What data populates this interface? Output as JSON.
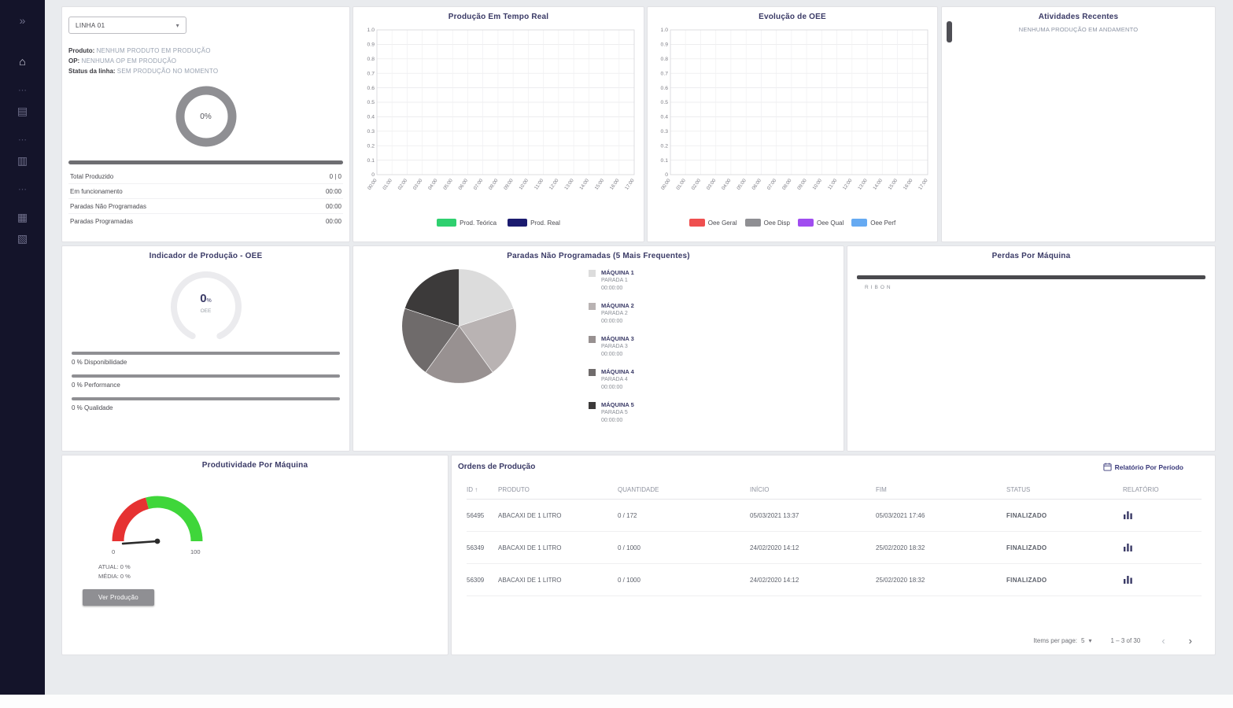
{
  "theme": {
    "accent": "#3a3a66",
    "sidebar_bg": "#14142a",
    "page_bg": "#e9ebee",
    "finalizado_color": "#26262b"
  },
  "sidebar": {
    "items": [
      {
        "name": "menu-expand",
        "glyph": "»"
      },
      {
        "name": "home",
        "glyph": "⌂"
      },
      {
        "name": "divider",
        "glyph": "⋯"
      },
      {
        "name": "producao",
        "glyph": "▤"
      },
      {
        "name": "divider",
        "glyph": "⋯"
      },
      {
        "name": "relatorios",
        "glyph": "▥"
      },
      {
        "name": "divider",
        "glyph": "⋯"
      },
      {
        "name": "maquinas",
        "glyph": "▦"
      },
      {
        "name": "cadastros",
        "glyph": "▧"
      }
    ]
  },
  "line_card": {
    "selector_value": "LINHA 01",
    "fields": [
      {
        "label": "Produto:",
        "value": "NENHUM PRODUTO EM PRODUÇÃO"
      },
      {
        "label": "OP:",
        "value": "NENHUMA OP EM PRODUÇÃO"
      },
      {
        "label": "Status da linha:",
        "value": "SEM PRODUÇÃO NO MOMENTO"
      }
    ],
    "donut_value": "0%",
    "stats": [
      {
        "label": "Total Produzido",
        "value": "0 | 0"
      },
      {
        "label": "Em funcionamento",
        "value": "00:00"
      },
      {
        "label": "Paradas Não Programadas",
        "value": "00:00"
      },
      {
        "label": "Paradas Programadas",
        "value": "00:00"
      }
    ]
  },
  "activities": {
    "title": "Atividades Recentes",
    "items": [
      "NENHUMA PRODUÇÃO EM ANDAMENTO"
    ]
  },
  "orders": {
    "title": "Ordens de Produção",
    "report_link": "Relatório Por Período",
    "columns": [
      "ID",
      "PRODUTO",
      "QUANTIDADE",
      "INÍCIO",
      "FIM",
      "STATUS",
      "RELATÓRIO"
    ],
    "rows": [
      {
        "id": "56495",
        "produto": "ABACAXI DE 1 LITRO",
        "quantidade": "0 / 172",
        "inicio": "05/03/2021 13:37",
        "fim": "05/03/2021 17:46",
        "status": "FINALIZADO"
      },
      {
        "id": "56349",
        "produto": "ABACAXI DE 1 LITRO",
        "quantidade": "0 / 1000",
        "inicio": "24/02/2020 14:12",
        "fim": "25/02/2020 18:32",
        "status": "FINALIZADO"
      },
      {
        "id": "56309",
        "produto": "ABACAXI DE 1 LITRO",
        "quantidade": "0 / 1000",
        "inicio": "24/02/2020 14:12",
        "fim": "25/02/2020 18:32",
        "status": "FINALIZADO"
      }
    ],
    "pagination": {
      "items_per_page_label": "Items per page:",
      "items_per_page": "5",
      "range_label": "1 – 3 of 30"
    }
  },
  "chart_data": [
    {
      "id": "producao_tempo_real",
      "type": "line",
      "title": "Produção Em Tempo Real",
      "x": [
        "00:00",
        "01:00",
        "02:00",
        "03:00",
        "04:00",
        "05:00",
        "06:00",
        "07:00",
        "08:00",
        "09:00",
        "10:00",
        "11:00",
        "12:00",
        "13:00",
        "14:00",
        "15:00",
        "16:00",
        "17:00"
      ],
      "ylim": [
        0,
        1.0
      ],
      "ytick_step": 0.1,
      "grid": true,
      "legend_position": "bottom",
      "series": [
        {
          "name": "Prod. Teórica",
          "color": "#2fd06f",
          "values": []
        },
        {
          "name": "Prod. Real",
          "color": "#1b1b6f",
          "values": []
        }
      ]
    },
    {
      "id": "evolucao_oee",
      "type": "line",
      "title": "Evolução de OEE",
      "x": [
        "00:00",
        "01:00",
        "02:00",
        "03:00",
        "04:00",
        "05:00",
        "06:00",
        "07:00",
        "08:00",
        "09:00",
        "10:00",
        "11:00",
        "12:00",
        "13:00",
        "14:00",
        "15:00",
        "16:00",
        "17:00"
      ],
      "ylim": [
        0,
        1.0
      ],
      "ytick_step": 0.1,
      "grid": true,
      "legend_position": "bottom",
      "series": [
        {
          "name": "Oee Geral",
          "color": "#ef4f4f",
          "values": []
        },
        {
          "name": "Oee Disp",
          "color": "#8f8f93",
          "values": []
        },
        {
          "name": "Oee Qual",
          "color": "#a04df0",
          "values": []
        },
        {
          "name": "Oee Perf",
          "color": "#66aaf2",
          "values": []
        }
      ]
    },
    {
      "id": "paradas_nao_programadas",
      "type": "pie",
      "title": "Paradas Não Programadas (5 Mais Frequentes)",
      "slices": [
        {
          "machine": "MÁQUINA 1",
          "parada": "PARADA 1",
          "duration": "00:00:00",
          "value": 20,
          "color": "#dcdcdc"
        },
        {
          "machine": "MÁQUINA 2",
          "parada": "PARADA 2",
          "duration": "00:00:00",
          "value": 20,
          "color": "#b9b3b3"
        },
        {
          "machine": "MÁQUINA 3",
          "parada": "PARADA 3",
          "duration": "00:00:00",
          "value": 20,
          "color": "#989191"
        },
        {
          "machine": "MÁQUINA 4",
          "parada": "PARADA 4",
          "duration": "00:00:00",
          "value": 20,
          "color": "#6f6b6b"
        },
        {
          "machine": "MÁQUINA 5",
          "parada": "PARADA 5",
          "duration": "00:00:00",
          "value": 20,
          "color": "#3c3a3a"
        }
      ]
    },
    {
      "id": "perdas_por_maquina",
      "type": "bar",
      "title": "Perdas Por Máquina",
      "orientation": "horizontal",
      "categories": [
        "RIBON"
      ],
      "values": [
        0
      ],
      "bar_color": "#4a4a4e"
    },
    {
      "id": "indicador_oee",
      "type": "gauge",
      "title": "Indicador de Produção - OEE",
      "center_value": "0",
      "center_unit": "%",
      "center_label": "OEE",
      "metrics": [
        {
          "value": "0 %",
          "label": "Disponibilidade"
        },
        {
          "value": "0 %",
          "label": "Performance"
        },
        {
          "value": "0 %",
          "label": "Qualidade"
        }
      ]
    },
    {
      "id": "produtividade_por_maquina",
      "type": "gauge",
      "title": "Produtividade Por Máquina",
      "min_label": "0",
      "max_label": "100",
      "value": 0,
      "zones": [
        {
          "to": 40,
          "color": "#e63232"
        },
        {
          "to": 100,
          "color": "#3fd63a"
        }
      ],
      "atual_label": "ATUAL: 0 %",
      "media_label": "MÉDIA: 0 %",
      "button_label": "Ver Produção"
    }
  ]
}
